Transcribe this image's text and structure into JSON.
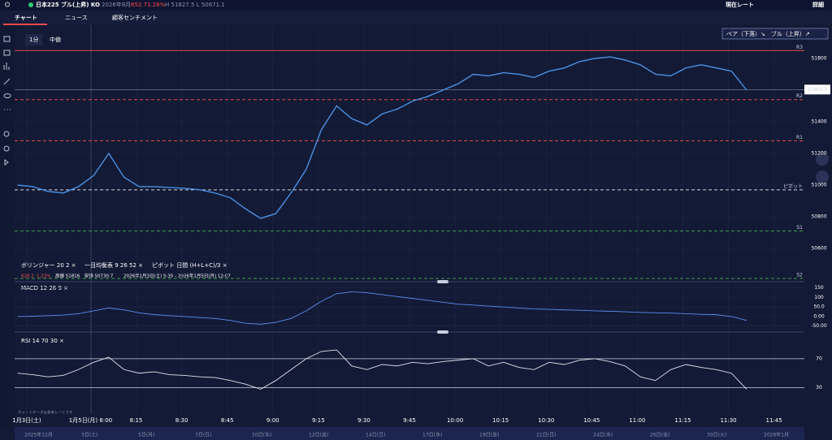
{
  "header": {
    "instrument": "日本225 ブル(上昇) KO",
    "expiry": "2026年8月",
    "change": "652.7",
    "change_pct": "1.28%",
    "range": "H 51827.5 L 50671.1",
    "current_rate": "現在レート",
    "details": "詳細"
  },
  "tabs": [
    "チャート",
    "ニュース",
    "顧客センチメント"
  ],
  "toolbar": {
    "interval": "1分",
    "price_type": "中値",
    "direction": "ベア（下落）↘　ブル（上昇）↗"
  },
  "legend": {
    "indicators": [
      "ボリンジャー 20 2 ×",
      "一目均衡表 9 26 52 ×",
      "ピボット 日間 (H+L+C)/3 ×"
    ],
    "stats_change": "628.2",
    "stats_pct": "1.23%",
    "stats_range": "高値 51816　安値 50730.7",
    "stats_period": "2026年1月3日(土) 5:35 - 2026年1月5日(月) 12:07"
  },
  "footnote": "チャートデータは参考レートです",
  "date_strip": [
    "2025年12月",
    "3日(土)",
    "5日(月)",
    "7日(日)",
    "10日(水)",
    "12日(金)",
    "14日(日)",
    "17日(水)",
    "19日(金)",
    "21日(日)",
    "24日(水)",
    "26日(金)",
    "30日(火)",
    "2026年1月"
  ],
  "chart_data": [
    {
      "type": "line",
      "xlim": [
        455,
        715
      ],
      "xticks": [
        {
          "value": 459,
          "label": "1月3日(土)"
        },
        {
          "value": 480,
          "label": "1月5日(月) 8:00"
        },
        {
          "value": 495,
          "label": "8:15"
        },
        {
          "value": 510,
          "label": "8:30"
        },
        {
          "value": 525,
          "label": "8:45"
        },
        {
          "value": 540,
          "label": "9:00"
        },
        {
          "value": 555,
          "label": "9:15"
        },
        {
          "value": 570,
          "label": "9:30"
        },
        {
          "value": 585,
          "label": "9:45"
        },
        {
          "value": 600,
          "label": "10:00"
        },
        {
          "value": 615,
          "label": "10:15"
        },
        {
          "value": 630,
          "label": "10:30"
        },
        {
          "value": 645,
          "label": "10:45"
        },
        {
          "value": 660,
          "label": "11:00"
        },
        {
          "value": 675,
          "label": "11:15"
        },
        {
          "value": 690,
          "label": "11:30"
        },
        {
          "value": 705,
          "label": "11:45"
        }
      ],
      "ylim": [
        50400,
        52000
      ],
      "yticks": [
        50600,
        50800,
        51000,
        51200,
        51400,
        51800
      ],
      "current_price": 51603.5,
      "levels": [
        {
          "label": "R3",
          "value": 51850,
          "color": "#e84a4a",
          "dashed": false
        },
        {
          "label": "R2",
          "value": 51540,
          "color": "#e84a4a",
          "dashed": true
        },
        {
          "label": "R1",
          "value": 51280,
          "color": "#e84a4a",
          "dashed": true
        },
        {
          "label": "ピボット",
          "value": 50970,
          "color": "#d0d4e0",
          "dashed": true
        },
        {
          "label": "S1",
          "value": 50710,
          "color": "#3f9a4a",
          "dashed": true
        },
        {
          "label": "S2",
          "value": 50410,
          "color": "#3f9a4a",
          "dashed": true
        }
      ],
      "x": [
        456,
        461,
        466,
        471,
        476,
        481,
        486,
        491,
        496,
        501,
        506,
        511,
        516,
        521,
        526,
        531,
        536,
        541,
        546,
        551,
        556,
        561,
        566,
        571,
        576,
        581,
        586,
        591,
        596,
        601,
        606,
        611,
        616,
        621,
        626,
        631,
        636,
        641,
        646,
        651,
        656,
        661,
        666,
        671,
        676,
        681,
        686,
        691,
        696
      ],
      "series": [
        {
          "color": "#4a90e2",
          "values": [
            51000,
            50990,
            50960,
            50950,
            50990,
            51060,
            51200,
            51050,
            50990,
            50990,
            50985,
            50980,
            50970,
            50950,
            50920,
            50850,
            50790,
            50820,
            50950,
            51100,
            51350,
            51500,
            51420,
            51380,
            51450,
            51480,
            51530,
            51560,
            51600,
            51640,
            51700,
            51690,
            51710,
            51700,
            51680,
            51720,
            51740,
            51780,
            51800,
            51810,
            51790,
            51760,
            51700,
            51690,
            51740,
            51760,
            51740,
            51720,
            51600
          ]
        }
      ]
    },
    {
      "type": "line",
      "title": "MACD 12 26 9 ×",
      "ylim": [
        -75,
        170
      ],
      "yticks": [
        150,
        100,
        {
          "value": 50,
          "label": "50.0"
        },
        {
          "value": 0,
          "label": "0.00"
        },
        {
          "value": -50,
          "label": "-50.00"
        }
      ],
      "x": [
        456,
        461,
        466,
        471,
        476,
        481,
        486,
        491,
        496,
        501,
        506,
        511,
        516,
        521,
        526,
        531,
        536,
        541,
        546,
        551,
        556,
        561,
        566,
        571,
        576,
        581,
        586,
        591,
        596,
        601,
        606,
        611,
        616,
        621,
        626,
        631,
        636,
        641,
        646,
        651,
        656,
        661,
        666,
        671,
        676,
        681,
        686,
        691,
        696
      ],
      "series": [
        {
          "color": "#5b8def",
          "values": [
            0,
            2,
            5,
            8,
            15,
            30,
            45,
            35,
            20,
            10,
            5,
            0,
            -5,
            -10,
            -20,
            -35,
            -40,
            -30,
            -10,
            30,
            80,
            120,
            130,
            125,
            115,
            105,
            95,
            85,
            75,
            65,
            60,
            55,
            50,
            45,
            40,
            38,
            35,
            33,
            30,
            28,
            25,
            22,
            20,
            18,
            15,
            12,
            10,
            0,
            -20
          ]
        }
      ]
    },
    {
      "type": "line",
      "title": "RSI 14 70 30 ×",
      "ylim": [
        5,
        100
      ],
      "yticks": [
        70,
        30
      ],
      "x": [
        456,
        461,
        466,
        471,
        476,
        481,
        486,
        491,
        496,
        501,
        506,
        511,
        516,
        521,
        526,
        531,
        536,
        541,
        546,
        551,
        556,
        561,
        566,
        571,
        576,
        581,
        586,
        591,
        596,
        601,
        606,
        611,
        616,
        621,
        626,
        631,
        636,
        641,
        646,
        651,
        656,
        661,
        666,
        671,
        676,
        681,
        686,
        691,
        696
      ],
      "series": [
        {
          "color": "#e0e3ec",
          "values": [
            50,
            48,
            45,
            47,
            55,
            65,
            72,
            55,
            50,
            52,
            48,
            47,
            45,
            44,
            40,
            35,
            28,
            40,
            55,
            70,
            80,
            82,
            60,
            55,
            62,
            60,
            65,
            63,
            66,
            68,
            70,
            60,
            65,
            58,
            55,
            65,
            62,
            68,
            70,
            66,
            60,
            45,
            40,
            55,
            62,
            58,
            55,
            50,
            28
          ]
        }
      ]
    }
  ]
}
